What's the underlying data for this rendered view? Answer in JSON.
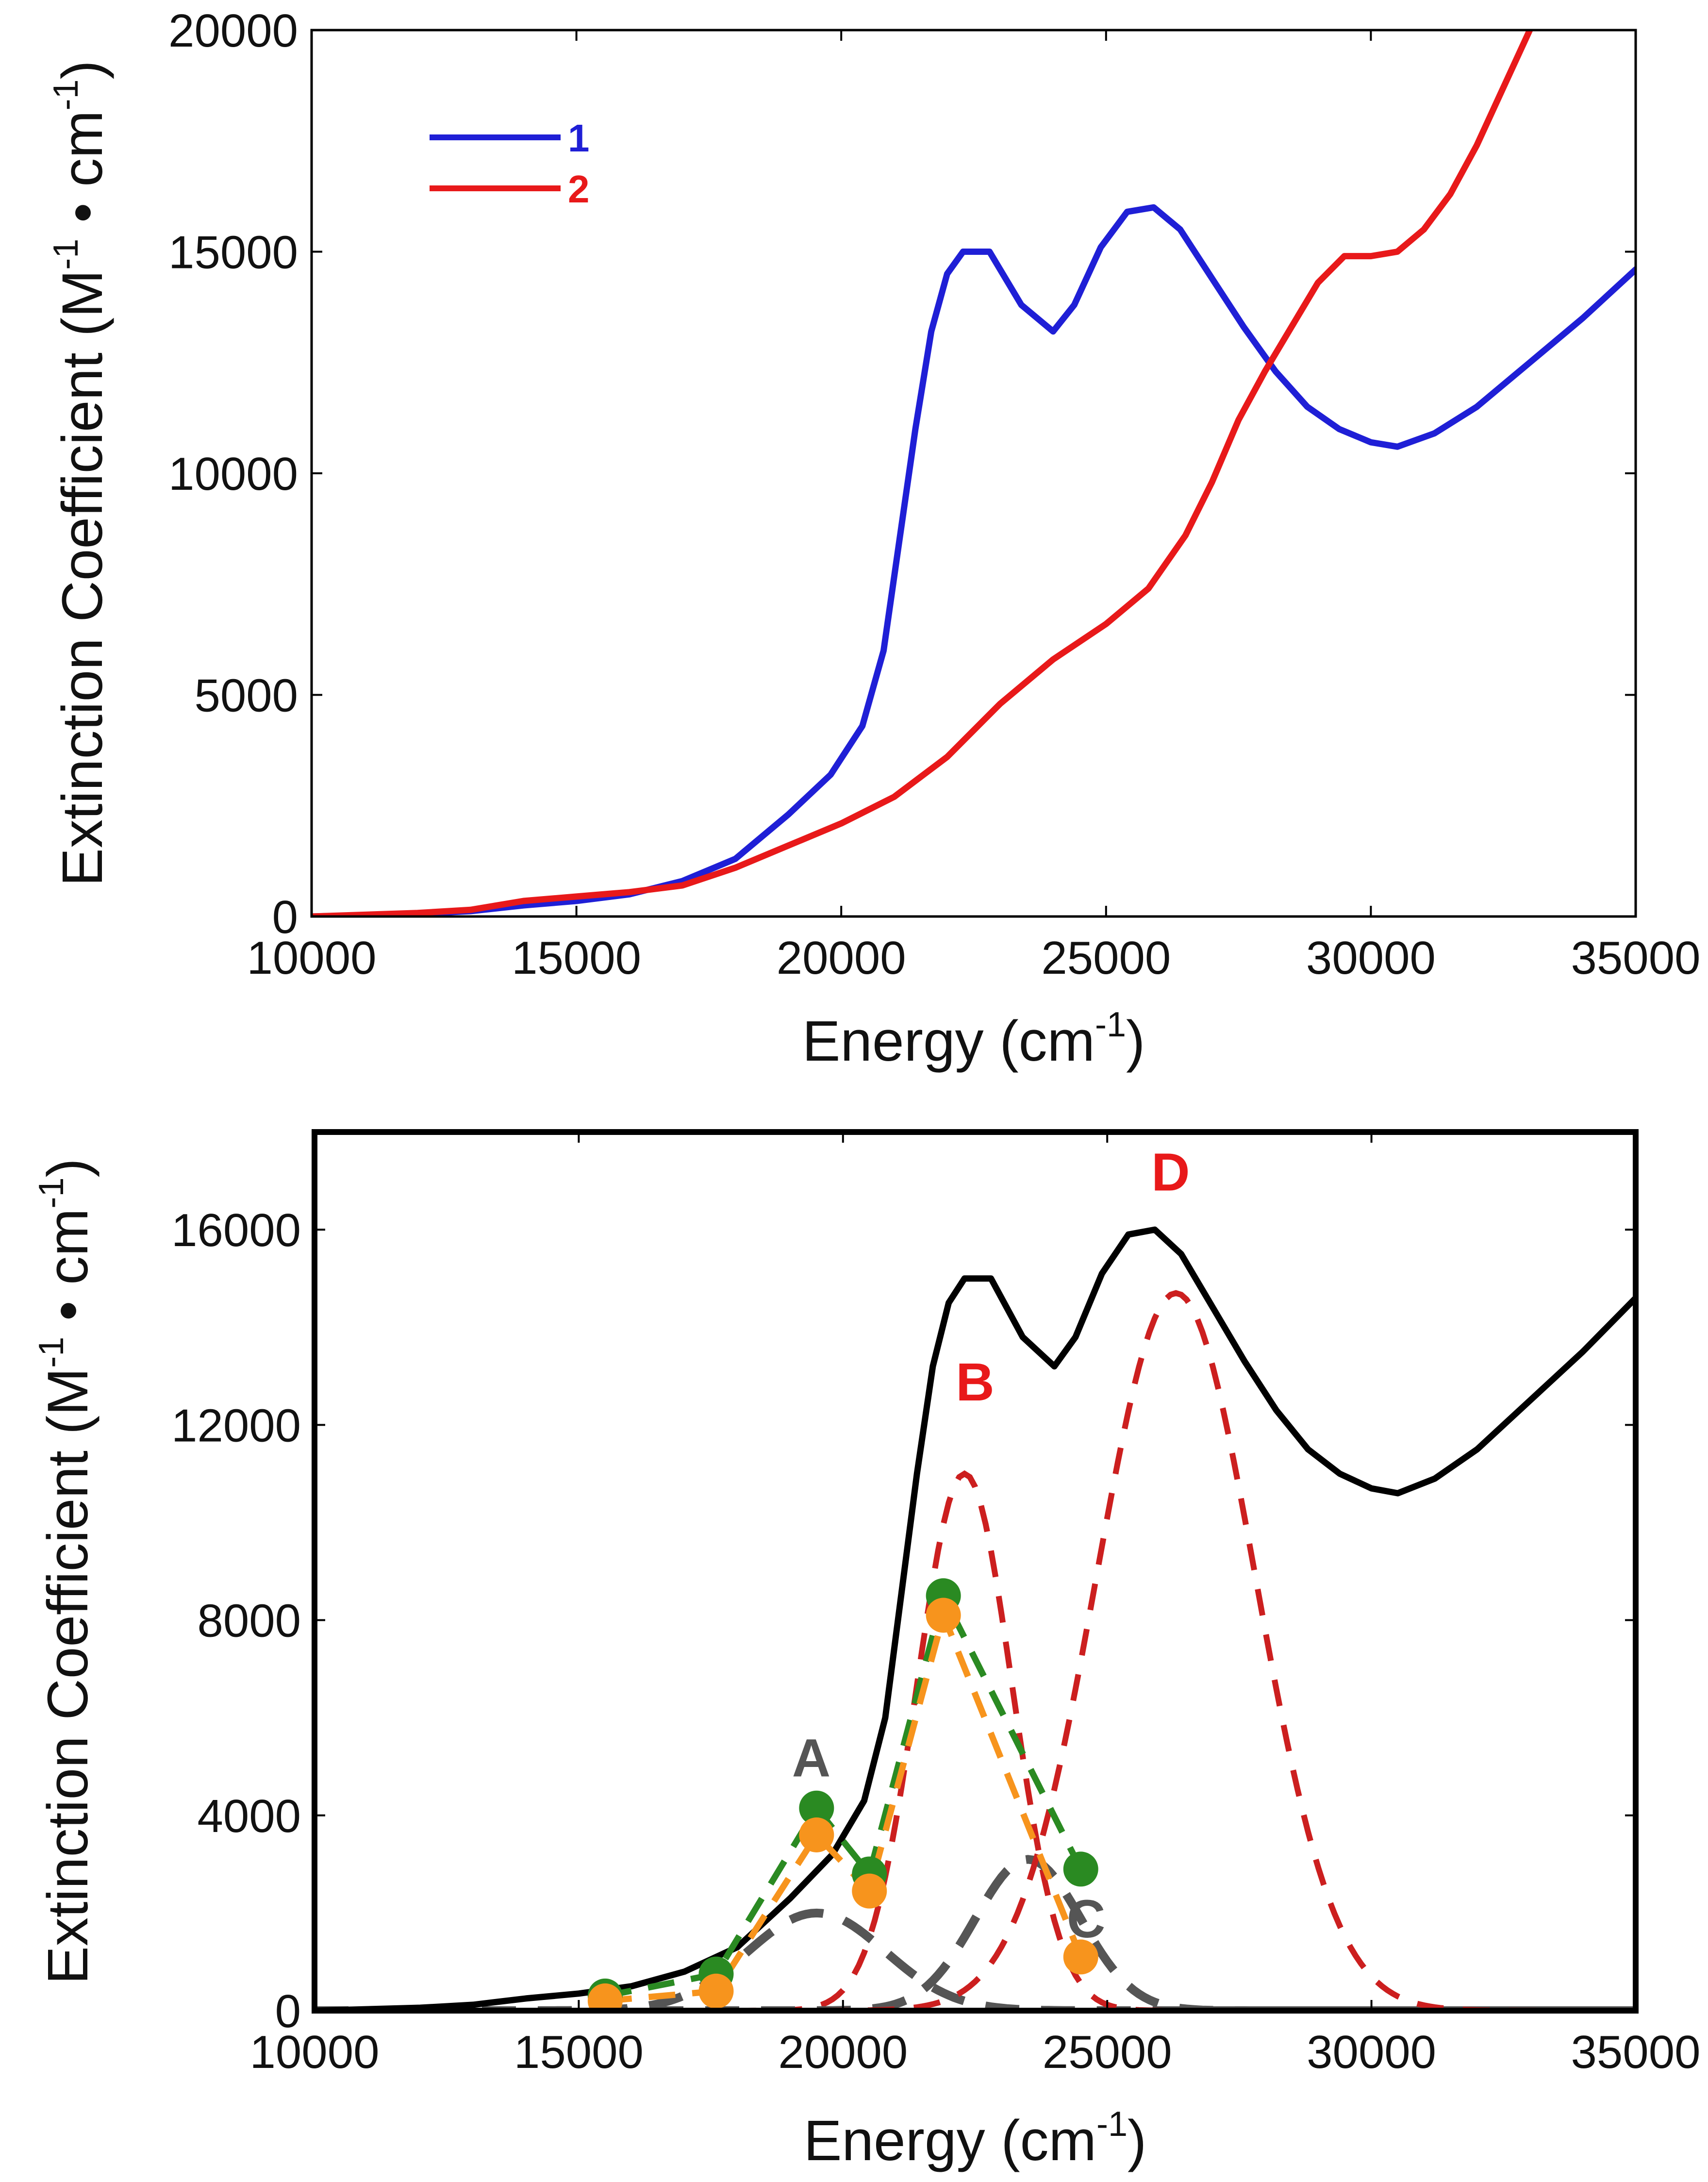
{
  "chart_data": [
    {
      "id": "top",
      "type": "line",
      "xlabel": "Energy (cm",
      "xlabel_sup": "-1",
      "xlabel_end": ")",
      "ylabel": "Extinction Coefficient (M",
      "ylabel_sup1": "-1",
      "ylabel_mid": " • cm",
      "ylabel_sup2": "-1",
      "ylabel_end": ")",
      "xlim": [
        10000,
        35000
      ],
      "ylim": [
        0,
        20000
      ],
      "xticks": [
        10000,
        15000,
        20000,
        25000,
        30000,
        35000
      ],
      "xtick_labels": [
        "10000",
        "15000",
        "20000",
        "25000",
        "30000",
        "35000"
      ],
      "yticks": [
        0,
        5000,
        10000,
        15000,
        20000
      ],
      "ytick_labels": [
        "0",
        "5000",
        "10000",
        "15000",
        "20000"
      ],
      "legend_position": "top-left",
      "series": [
        {
          "name": "1",
          "color": "#1f1fd6",
          "x": [
            10000,
            12000,
            13000,
            14000,
            15000,
            16000,
            17000,
            18000,
            19000,
            19800,
            20400,
            20800,
            21100,
            21400,
            21700,
            22000,
            22300,
            22800,
            23400,
            24000,
            24400,
            24900,
            25400,
            25900,
            26400,
            27000,
            27600,
            28200,
            28800,
            29400,
            30000,
            30500,
            31200,
            32000,
            33000,
            34000,
            35000
          ],
          "y": [
            0,
            60,
            120,
            250,
            350,
            500,
            800,
            1300,
            2300,
            3200,
            4300,
            6000,
            8500,
            11000,
            13200,
            14500,
            15000,
            15000,
            13800,
            13200,
            13800,
            15100,
            15900,
            16000,
            15500,
            14400,
            13300,
            12300,
            11500,
            11000,
            10700,
            10600,
            10900,
            11500,
            12500,
            13500,
            14600
          ]
        },
        {
          "name": "2",
          "color": "#e8191a",
          "x": [
            10000,
            12000,
            13000,
            14000,
            15000,
            16000,
            17000,
            18000,
            19000,
            20000,
            21000,
            22000,
            23000,
            24000,
            25000,
            25800,
            26500,
            27000,
            27500,
            28000,
            28500,
            29000,
            29500,
            30000,
            30500,
            31000,
            31500,
            32000,
            32500,
            33000
          ],
          "y": [
            0,
            80,
            150,
            350,
            450,
            550,
            700,
            1100,
            1600,
            2100,
            2700,
            3600,
            4800,
            5800,
            6600,
            7400,
            8600,
            9800,
            11200,
            12300,
            13300,
            14300,
            14900,
            14900,
            15000,
            15500,
            16300,
            17400,
            18700,
            20000
          ]
        }
      ]
    },
    {
      "id": "bottom",
      "type": "line",
      "xlabel": "Energy (cm",
      "xlabel_sup": "-1",
      "xlabel_end": ")",
      "ylabel": "Extinction Coefficient (M",
      "ylabel_sup1": "-1",
      "ylabel_mid": " • cm",
      "ylabel_sup2": "-1",
      "ylabel_end": ")",
      "xlim": [
        10000,
        35000
      ],
      "ylim": [
        0,
        18000
      ],
      "xticks": [
        10000,
        15000,
        20000,
        25000,
        30000,
        35000
      ],
      "xtick_labels": [
        "10000",
        "15000",
        "20000",
        "25000",
        "30000",
        "35000"
      ],
      "yticks": [
        0,
        4000,
        8000,
        12000,
        16000
      ],
      "ytick_labels": [
        "0",
        "4000",
        "8000",
        "12000",
        "16000"
      ],
      "absorption": {
        "color": "#000000",
        "x": [
          10000,
          12000,
          13000,
          14000,
          15000,
          16000,
          17000,
          18000,
          19000,
          19800,
          20400,
          20800,
          21100,
          21400,
          21700,
          22000,
          22300,
          22800,
          23400,
          24000,
          24400,
          24900,
          25400,
          25900,
          26400,
          27000,
          27600,
          28200,
          28800,
          29400,
          30000,
          30500,
          31200,
          32000,
          33000,
          34000,
          35000
        ],
        "y": [
          0,
          60,
          120,
          250,
          350,
          500,
          800,
          1300,
          2300,
          3200,
          4300,
          6000,
          8500,
          11000,
          13200,
          14500,
          15000,
          15000,
          13800,
          13200,
          13800,
          15100,
          15900,
          16000,
          15500,
          14400,
          13300,
          12300,
          11500,
          11000,
          10700,
          10600,
          10900,
          11500,
          12500,
          13500,
          14600
        ]
      },
      "gaussian_bands": [
        {
          "label": "A",
          "color": "#555555",
          "center": 19500,
          "amplitude": 2000,
          "sigma": 1300
        },
        {
          "label": "B",
          "color": "#cc1f1f",
          "center": 22300,
          "amplitude": 11000,
          "sigma": 900
        },
        {
          "label": "C",
          "color": "#555555",
          "center": 23500,
          "amplitude": 3100,
          "sigma": 1000
        },
        {
          "label": "D",
          "color": "#cc1f1f",
          "center": 26300,
          "amplitude": 14700,
          "sigma": 1500
        }
      ],
      "band_labels": [
        {
          "text": "A",
          "x": 19400,
          "y": 4800,
          "color": "#555555"
        },
        {
          "text": "B",
          "x": 22500,
          "y": 12500,
          "color": "#e8191a"
        },
        {
          "text": "C",
          "x": 24600,
          "y": 1500,
          "color": "#555555"
        },
        {
          "text": "D",
          "x": 26200,
          "y": 16800,
          "color": "#e8191a"
        }
      ],
      "mcd_series": [
        {
          "name": "green",
          "color": "#2a8a22",
          "x": [
            15500,
            17600,
            19500,
            20500,
            21900,
            24500
          ],
          "y": [
            300,
            750,
            4150,
            2800,
            8500,
            2900
          ]
        },
        {
          "name": "orange",
          "color": "#f7941d",
          "x": [
            15500,
            17600,
            19500,
            20500,
            21900,
            24500
          ],
          "y": [
            200,
            400,
            3600,
            2450,
            8100,
            1100
          ]
        }
      ]
    }
  ],
  "legend": {
    "items": [
      {
        "label": "1",
        "color": "#1f1fd6"
      },
      {
        "label": "2",
        "color": "#e8191a"
      }
    ]
  }
}
